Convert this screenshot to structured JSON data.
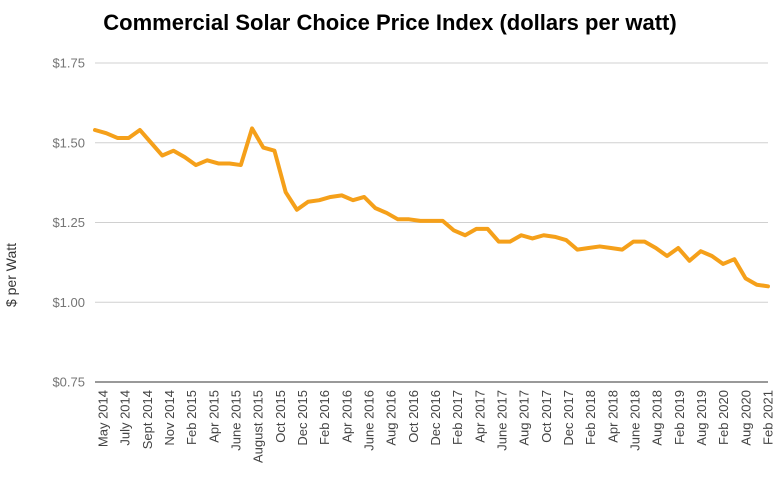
{
  "chart_data": {
    "type": "line",
    "title": "Commercial Solar Choice Price Index (dollars per watt)",
    "xlabel": "",
    "ylabel": "$ per Watt",
    "ylim": [
      0.75,
      1.75
    ],
    "yticks": [
      "$0.75",
      "$1.00",
      "$1.25",
      "$1.50",
      "$1.75"
    ],
    "ytick_values": [
      0.75,
      1.0,
      1.25,
      1.5,
      1.75
    ],
    "grid": true,
    "legend": "none",
    "color": "#f5a01a",
    "x_tick_labels": [
      "May 2014",
      "July 2014",
      "Sept 2014",
      "Nov 2014",
      "Feb 2015",
      "Apr 2015",
      "June 2015",
      "August 2015",
      "Oct 2015",
      "Dec 2015",
      "Feb 2016",
      "Apr 2016",
      "June 2016",
      "Aug 2016",
      "Oct 2016",
      "Dec 2016",
      "Feb 2017",
      "Apr 2017",
      "June 2017",
      "Aug 2017",
      "Oct 2017",
      "Dec 2017",
      "Feb 2018",
      "Apr 2018",
      "June 2018",
      "Aug 2018",
      "Feb 2019",
      "Aug 2019",
      "Feb 2020",
      "Aug 2020",
      "Feb 2021"
    ],
    "series": [
      {
        "values": [
          1.54,
          1.53,
          1.515,
          1.515,
          1.54,
          1.5,
          1.46,
          1.475,
          1.455,
          1.43,
          1.445,
          1.435,
          1.435,
          1.43,
          1.545,
          1.485,
          1.475,
          1.345,
          1.29,
          1.315,
          1.32,
          1.33,
          1.335,
          1.32,
          1.33,
          1.295,
          1.28,
          1.26,
          1.26,
          1.255,
          1.255,
          1.255,
          1.225,
          1.21,
          1.23,
          1.23,
          1.19,
          1.19,
          1.21,
          1.2,
          1.21,
          1.205,
          1.195,
          1.165,
          1.17,
          1.175,
          1.17,
          1.165,
          1.19,
          1.19,
          1.17,
          1.145,
          1.17,
          1.13,
          1.16,
          1.145,
          1.12,
          1.135,
          1.075,
          1.055,
          1.05
        ]
      }
    ]
  }
}
